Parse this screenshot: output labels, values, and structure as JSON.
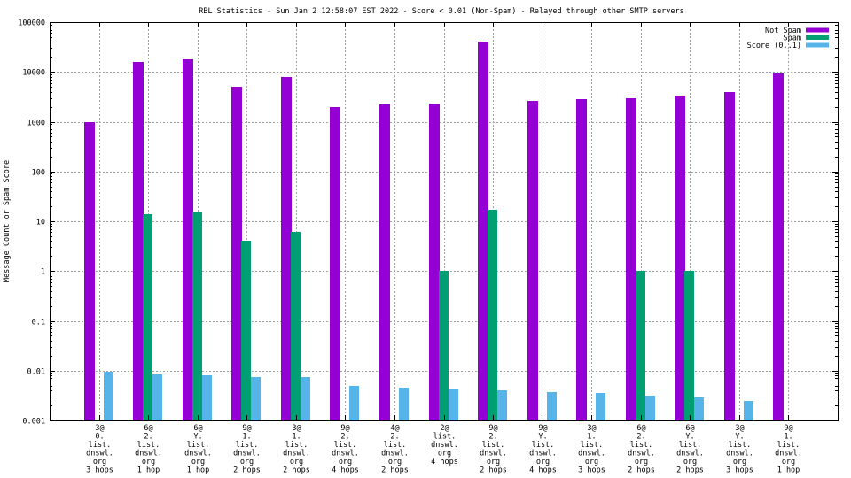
{
  "chart_data": {
    "type": "bar",
    "title": "RBL Statistics - Sun Jan  2 12:58:07 EST 2022 - Score < 0.01 (Non-Spam) - Relayed through other SMTP servers",
    "xlabel": "",
    "ylabel": "Message Count or Spam Score",
    "yscale": "log",
    "ylim": [
      0.001,
      100000
    ],
    "yticks": [
      "0.001",
      "0.01",
      "0.1",
      "1",
      "10",
      "100",
      "1000",
      "10000",
      "100000"
    ],
    "ytick_values": [
      0.001,
      0.01,
      0.1,
      1,
      10,
      100,
      1000,
      10000,
      100000
    ],
    "grid": true,
    "legend_position": "top-right",
    "categories": [
      [
        "3@",
        "0.",
        "list.",
        "dnswl.",
        "org",
        "3 hops"
      ],
      [
        "6@",
        "2.",
        "list.",
        "dnswl.",
        "org",
        "1 hop"
      ],
      [
        "6@",
        "Y.",
        "list.",
        "dnswl.",
        "org",
        "1 hop"
      ],
      [
        "9@",
        "1.",
        "list.",
        "dnswl.",
        "org",
        "2 hops"
      ],
      [
        "3@",
        "1.",
        "list.",
        "dnswl.",
        "org",
        "2 hops"
      ],
      [
        "9@",
        "2.",
        "list.",
        "dnswl.",
        "org",
        "4 hops"
      ],
      [
        "4@",
        "2.",
        "list.",
        "dnswl.",
        "org",
        "2 hops"
      ],
      [
        "2@",
        "list.",
        "dnswl.",
        "org",
        "4 hops"
      ],
      [
        "9@",
        "2.",
        "list.",
        "dnswl.",
        "org",
        "2 hops"
      ],
      [
        "9@",
        "Y.",
        "list.",
        "dnswl.",
        "org",
        "4 hops"
      ],
      [
        "3@",
        "1.",
        "list.",
        "dnswl.",
        "org",
        "3 hops"
      ],
      [
        "6@",
        "2.",
        "list.",
        "dnswl.",
        "org",
        "2 hops"
      ],
      [
        "6@",
        "Y.",
        "list.",
        "dnswl.",
        "org",
        "2 hops"
      ],
      [
        "3@",
        "Y.",
        "list.",
        "dnswl.",
        "org",
        "3 hops"
      ],
      [
        "9@",
        "1.",
        "list.",
        "dnswl.",
        "org",
        "1 hop"
      ]
    ],
    "series": [
      {
        "name": "Not Spam",
        "color": "#9400d3",
        "values": [
          1000,
          16000,
          18000,
          5000,
          8000,
          2000,
          2200,
          2300,
          41000,
          2600,
          2800,
          3000,
          3300,
          4000,
          9500
        ]
      },
      {
        "name": "Spam",
        "color": "#009e73",
        "values": [
          0,
          14,
          15,
          4,
          6,
          0,
          0,
          1,
          17,
          0,
          0,
          1,
          1,
          0,
          0
        ]
      },
      {
        "name": "Score (0..1)",
        "color": "#56b4e9",
        "values": [
          0.0095,
          0.0085,
          0.008,
          0.0075,
          0.0073,
          0.005,
          0.0045,
          0.0042,
          0.004,
          0.0037,
          0.0035,
          0.0032,
          0.0029,
          0.0025,
          0
        ]
      }
    ]
  }
}
